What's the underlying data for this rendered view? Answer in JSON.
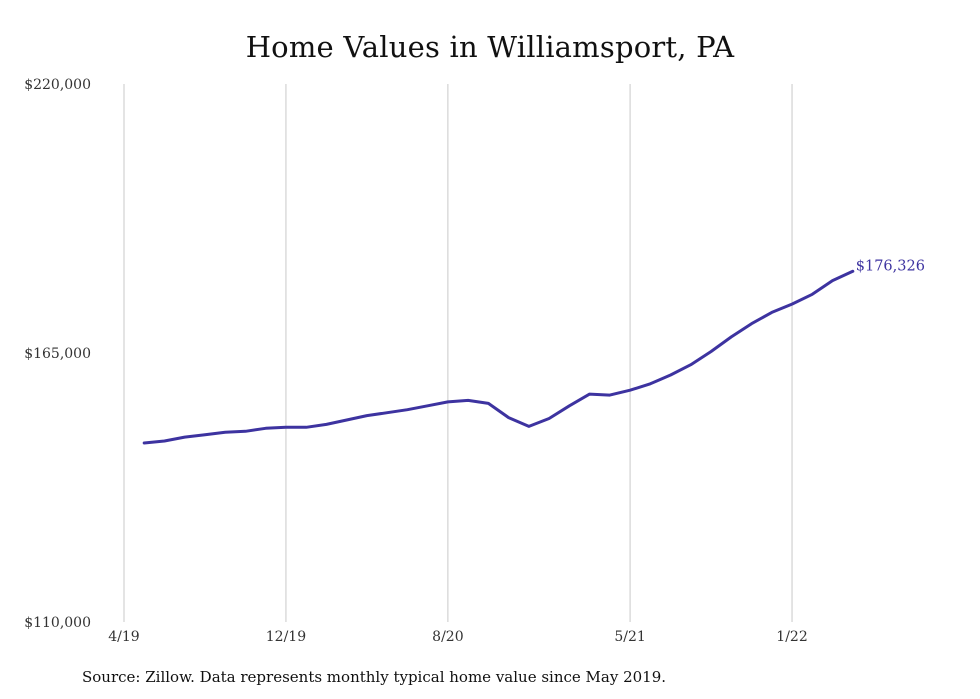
{
  "chart_data": {
    "type": "line",
    "title": "Home Values in Williamsport, PA",
    "xlabel": "",
    "ylabel": "",
    "ylim": [
      110000,
      220000
    ],
    "y_ticks": [
      "$110,000",
      "$165,000",
      "$220,000"
    ],
    "y_tick_values": [
      110000,
      165000,
      220000
    ],
    "x_tick_labels": [
      "4/19",
      "12/19",
      "8/20",
      "5/21",
      "1/22"
    ],
    "x_tick_dates": [
      "2019-04",
      "2019-12",
      "2020-08",
      "2021-05",
      "2022-01"
    ],
    "x_range": [
      "2019-04",
      "2022-05"
    ],
    "grid": "vertical",
    "series": [
      {
        "color": "#3d33a0",
        "x": [
          "2019-05",
          "2019-06",
          "2019-07",
          "2019-08",
          "2019-09",
          "2019-10",
          "2019-11",
          "2019-12",
          "2020-01",
          "2020-02",
          "2020-03",
          "2020-04",
          "2020-05",
          "2020-06",
          "2020-07",
          "2020-08",
          "2020-09",
          "2020-10",
          "2020-11",
          "2020-12",
          "2021-01",
          "2021-02",
          "2021-03",
          "2021-04",
          "2021-05",
          "2021-06",
          "2021-07",
          "2021-08",
          "2021-09",
          "2021-10",
          "2021-11",
          "2021-12",
          "2022-01",
          "2022-02",
          "2022-03",
          "2022-04"
        ],
        "values": [
          146600,
          147000,
          147800,
          148300,
          148800,
          149000,
          149600,
          149800,
          149800,
          150400,
          151300,
          152200,
          152800,
          153400,
          154200,
          155000,
          155300,
          154700,
          151800,
          150000,
          151600,
          154200,
          156600,
          156400,
          157400,
          158700,
          160500,
          162600,
          165300,
          168300,
          171000,
          173300,
          175000,
          177000,
          179800,
          181700
        ]
      }
    ],
    "annotations": [
      {
        "text": "$176,326"
      }
    ]
  },
  "footer": {
    "source": "Source: Zillow. Data represents monthly typical home value since May 2019."
  }
}
